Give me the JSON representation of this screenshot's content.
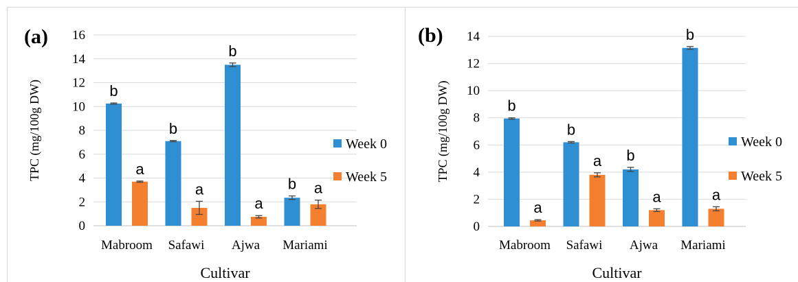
{
  "chart_data": [
    {
      "type": "bar",
      "panel_label": "(a)",
      "categories": [
        "Mabroom",
        "Safawi",
        "Ajwa",
        "Mariami"
      ],
      "series": [
        {
          "name": "Week 0",
          "color": "#2E8FD3",
          "values": [
            10.25,
            7.1,
            13.5,
            2.35
          ],
          "errors": [
            0.05,
            0.05,
            0.15,
            0.15
          ],
          "letters": [
            "b",
            "b",
            "b",
            "b"
          ]
        },
        {
          "name": "Week 5",
          "color": "#F47F2E",
          "values": [
            3.7,
            1.5,
            0.75,
            1.8
          ],
          "errors": [
            0.05,
            0.55,
            0.1,
            0.35
          ],
          "letters": [
            "a",
            "a",
            "a",
            "a"
          ]
        }
      ],
      "xlabel": "Cultivar",
      "ylabel": "TPC (mg/100g DW)",
      "ylim": [
        0,
        16
      ],
      "yticks": [
        "0",
        "2",
        "4",
        "6",
        "8",
        "10",
        "12",
        "14",
        "16"
      ],
      "grid": true,
      "legend": "right"
    },
    {
      "type": "bar",
      "panel_label": "(b)",
      "categories": [
        "Mabroom",
        "Safawi",
        "Ajwa",
        "Mariami"
      ],
      "series": [
        {
          "name": "Week 0",
          "color": "#2E8FD3",
          "values": [
            7.95,
            6.2,
            4.2,
            13.15
          ],
          "errors": [
            0.05,
            0.05,
            0.15,
            0.1
          ],
          "letters": [
            "b",
            "b",
            "b",
            "b"
          ]
        },
        {
          "name": "Week 5",
          "color": "#F47F2E",
          "values": [
            0.45,
            3.8,
            1.2,
            1.3
          ],
          "errors": [
            0.05,
            0.15,
            0.1,
            0.15
          ],
          "letters": [
            "a",
            "a",
            "a",
            "a"
          ]
        }
      ],
      "xlabel": "Cultivar",
      "ylabel": "TPC (mg/100g DW)",
      "ylim": [
        0,
        14
      ],
      "yticks": [
        "0",
        "2",
        "4",
        "6",
        "8",
        "10",
        "12",
        "14"
      ],
      "grid": true,
      "legend": "right"
    }
  ]
}
